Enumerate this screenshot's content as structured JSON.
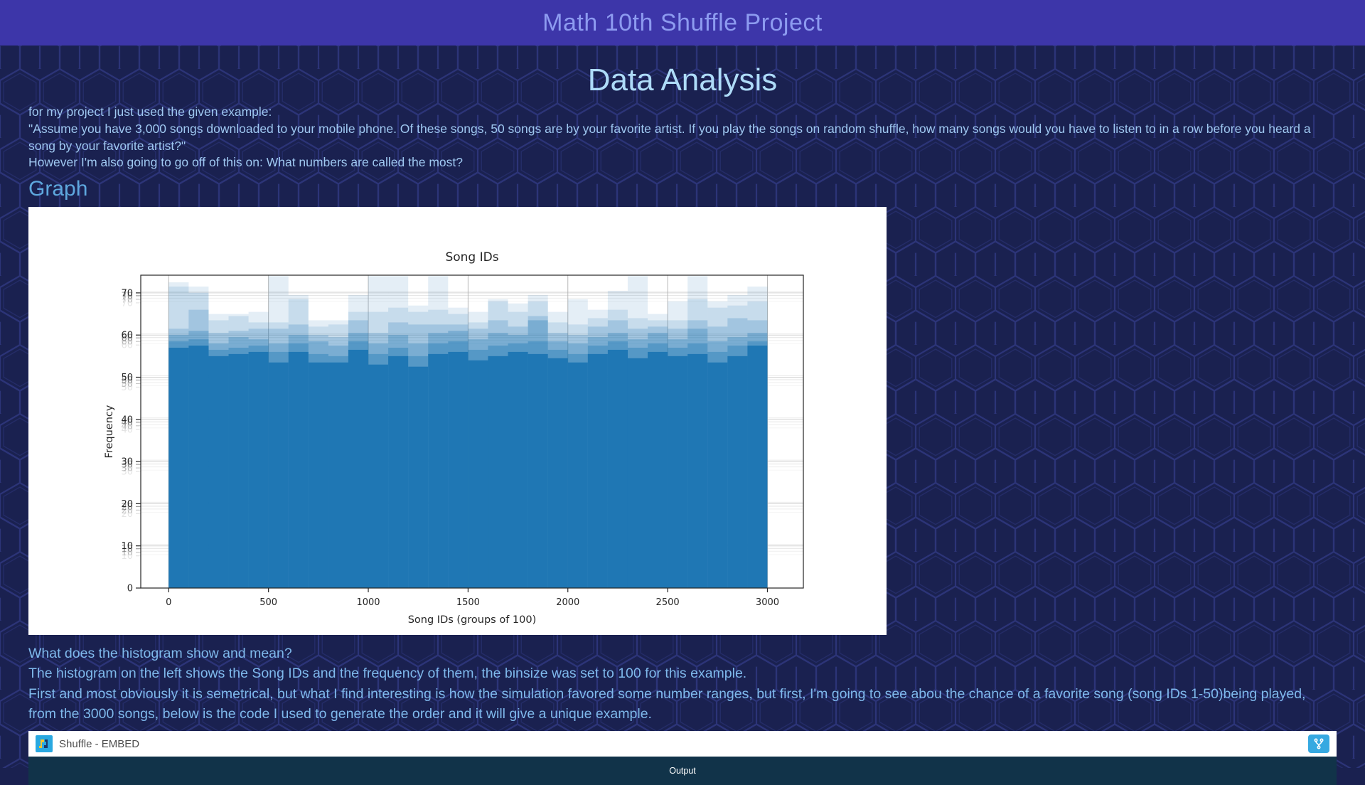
{
  "header": {
    "title": "Math 10th Shuffle Project"
  },
  "page": {
    "heading": "Data Analysis",
    "intro_lines": [
      "for my project I just used the given example:",
      "\"Assume you have 3,000 songs downloaded to your mobile phone. Of these songs, 50 songs are by your favorite artist. If you play the songs on random shuffle, how many songs would you have to listen to in a row before you heard a song by your favorite artist?\"",
      "However I'm also going to go off of this on: What numbers are called the most?"
    ],
    "graph_heading": "Graph",
    "analysis_lines": [
      "What does the histogram show and mean?",
      "The histogram on the left shows the Song IDs and the frequency of them, the binsize was set to 100 for this example.",
      "First and most obviously it is semetrical, but what I find interesting is how the simulation favored some number ranges, but first, I'm going to see abou the chance of a favorite song (song IDs 1-50)being played, from the 3000 songs, below is the code I used to generate the order and it will give a unique example."
    ]
  },
  "embed": {
    "title": "Shuffle - EMBED",
    "output_label": "Output",
    "icon_name": "trinket-logo-icon",
    "fork_icon_name": "fork-remix-icon",
    "accent_color": "#36a9e1",
    "output_bg": "#113349"
  },
  "chart_data": {
    "type": "bar",
    "subtype": "overlaid-histograms",
    "title": "Song IDs",
    "xlabel": "Song IDs (groups of 100)",
    "ylabel": "Frequency",
    "bin_width": 100,
    "x_start": 0,
    "xlim": [
      -140,
      3180
    ],
    "ylim": [
      0,
      74.2
    ],
    "xticks": [
      0,
      500,
      1000,
      1500,
      2000,
      2500,
      3000
    ],
    "yticks": [
      0,
      10,
      20,
      30,
      40,
      50,
      60,
      70
    ],
    "grid": true,
    "bar_color": "#1f77b4",
    "grid_color": "#b0b0b0",
    "axis_color": "#262626",
    "panel_bg": "#ffffff",
    "base": [
      57,
      57.5,
      55,
      55.5,
      56,
      53.5,
      56,
      53.5,
      53.5,
      56.5,
      53,
      55,
      52.5,
      55.5,
      56,
      54,
      55,
      56,
      55.5,
      54.5,
      53.5,
      55.5,
      56.5,
      54.5,
      56,
      55,
      55.5,
      53.5,
      55,
      57.5
    ],
    "layers": [
      {
        "name": "overlay-run-1",
        "opacity": 0.4,
        "values": [
          58.5,
          59,
          56.5,
          57,
          57.5,
          56,
          58,
          55.5,
          55,
          58.5,
          55.5,
          57,
          55,
          58,
          58.5,
          56.5,
          57.5,
          58,
          58.5,
          56.5,
          55.5,
          57.5,
          58.5,
          57,
          58,
          57,
          58,
          56,
          57.5,
          58.5
        ]
      },
      {
        "name": "overlay-run-2",
        "opacity": 0.3,
        "values": [
          60,
          61,
          58,
          59.5,
          59,
          58,
          60,
          58.5,
          57.5,
          60.5,
          58,
          60,
          58,
          60.5,
          61,
          59,
          60.5,
          60,
          63.5,
          58.5,
          58,
          59.5,
          60.5,
          59,
          60.5,
          59,
          61.5,
          58.5,
          59.5,
          60.5
        ]
      },
      {
        "name": "overlay-run-3",
        "opacity": 0.22,
        "values": [
          61.5,
          66,
          60.5,
          61,
          61.5,
          61.5,
          62.5,
          60,
          59.5,
          63.5,
          60.5,
          63,
          62.5,
          62.5,
          62.5,
          61.5,
          63.5,
          62,
          64.5,
          60.5,
          60,
          62,
          63.5,
          61.5,
          62,
          61.5,
          63.5,
          62,
          64,
          63.5
        ]
      },
      {
        "name": "overlay-run-4",
        "opacity": 0.15,
        "values": [
          71.5,
          70,
          63.5,
          64.5,
          63,
          63,
          68.5,
          62,
          62.5,
          65.5,
          65.5,
          66.5,
          65.5,
          66,
          65,
          63,
          68,
          65.5,
          68,
          63,
          62.5,
          64,
          66,
          64,
          63.5,
          63.5,
          68.5,
          66.5,
          67,
          68
        ]
      },
      {
        "name": "overlay-run-5",
        "opacity": 0.12,
        "values": [
          72.5,
          71.5,
          65,
          65,
          65.5,
          74,
          69.5,
          63.5,
          63.5,
          69.5,
          74,
          74,
          67,
          74,
          66.5,
          65.5,
          68.5,
          67.5,
          69.5,
          65.5,
          68.5,
          66,
          70.5,
          74,
          65,
          68,
          74,
          68,
          69.5,
          71.5
        ]
      }
    ]
  }
}
